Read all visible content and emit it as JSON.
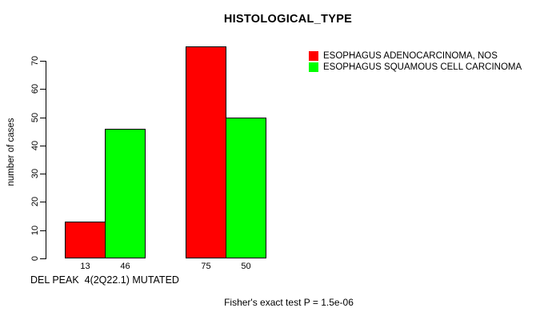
{
  "title": "HISTOLOGICAL_TYPE",
  "footnote": "Fisher's exact test P = 1.5e-06",
  "chart_data": {
    "type": "bar",
    "title": "HISTOLOGICAL_TYPE",
    "xlabel": "DEL PEAK  4(2Q22.1) MUTATED",
    "ylabel": "number of cases",
    "ylim": [
      0,
      70
    ],
    "yticks": [
      0,
      10,
      20,
      30,
      40,
      50,
      60,
      70
    ],
    "categories": [
      "",
      ""
    ],
    "series": [
      {
        "name": "ESOPHAGUS ADENOCARCINOMA, NOS",
        "color": "#ff0000",
        "values": [
          13,
          75
        ]
      },
      {
        "name": "ESOPHAGUS SQUAMOUS CELL CARCINOMA",
        "color": "#00ff00",
        "values": [
          46,
          50
        ]
      }
    ],
    "bar_value_labels": [
      [
        13,
        46
      ],
      [
        75,
        50
      ]
    ],
    "legend_position": "top-right-inside",
    "grid": false,
    "background": "#ffffff"
  }
}
